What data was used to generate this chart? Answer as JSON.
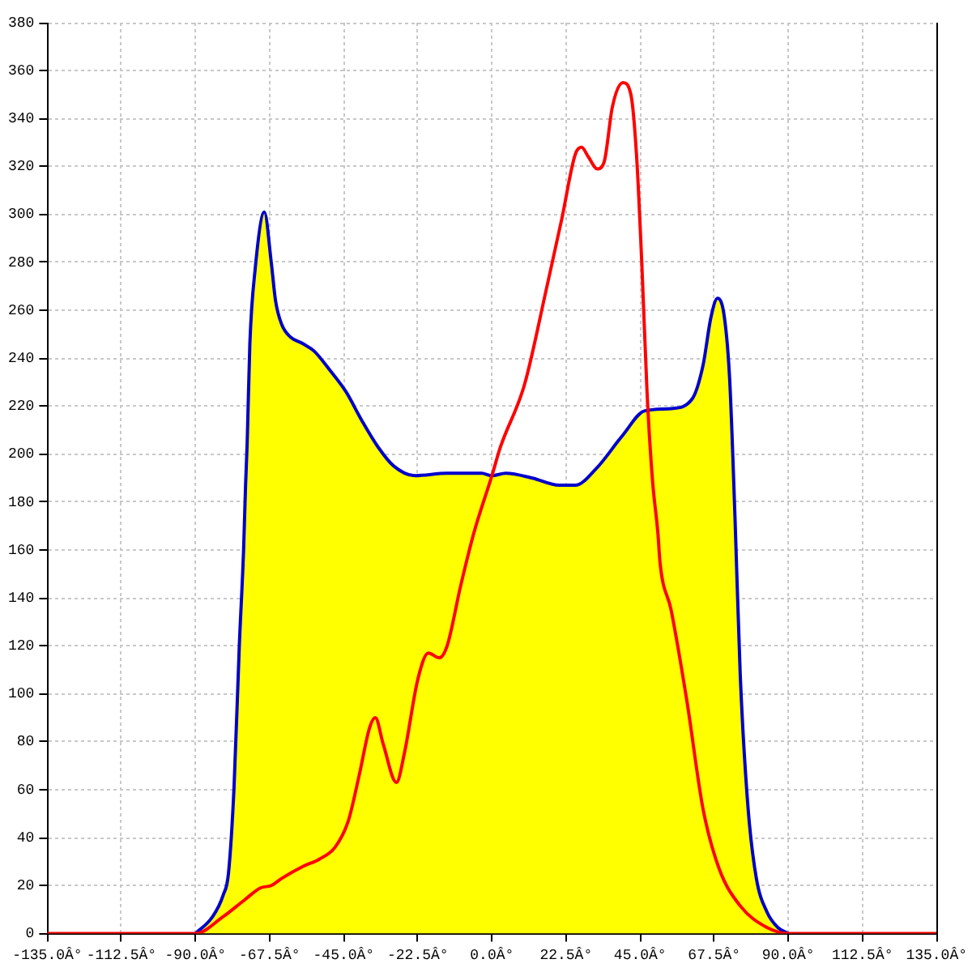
{
  "chart_data": {
    "type": "line",
    "xlim": [
      -135,
      135
    ],
    "xticks": [
      {
        "value": -135,
        "label": "-135.0Â°"
      },
      {
        "value": -112.5,
        "label": "-112.5Â°"
      },
      {
        "value": -90,
        "label": "-90.0Â°"
      },
      {
        "value": -67.5,
        "label": "-67.5Â°"
      },
      {
        "value": -45,
        "label": "-45.0Â°"
      },
      {
        "value": -22.5,
        "label": "-22.5Â°"
      },
      {
        "value": 0,
        "label": "0.0Â°"
      },
      {
        "value": 22.5,
        "label": "22.5Â°"
      },
      {
        "value": 45,
        "label": "45.0Â°"
      },
      {
        "value": 67.5,
        "label": "67.5Â°"
      },
      {
        "value": 90,
        "label": "90.0Â°"
      },
      {
        "value": 112.5,
        "label": "112.5Â°"
      },
      {
        "value": 135,
        "label": "135.0Â°"
      }
    ],
    "ylim": [
      0,
      380
    ],
    "yticks": [
      0,
      20,
      40,
      60,
      80,
      100,
      120,
      140,
      160,
      180,
      200,
      220,
      240,
      260,
      280,
      300,
      320,
      340,
      360,
      380
    ],
    "grid": true,
    "series": [
      {
        "type": "area",
        "color": "#ffff00",
        "x": [
          -135,
          -90,
          -84.8,
          -81.6,
          -80,
          -78.3,
          -76.7,
          -75.4,
          -74.8,
          -74.3,
          -73.5,
          -71.9,
          -69.1,
          -67,
          -65.7,
          -63.8,
          -61.3,
          -57.3,
          -54,
          -49.2,
          -44.3,
          -39.5,
          -34.6,
          -29.8,
          -23.3,
          -13.6,
          -3.1,
          0,
          4.2,
          12.3,
          20.4,
          25.3,
          31.7,
          39.8,
          46.3,
          54.4,
          60.8,
          64.1,
          66.5,
          68.5,
          70.6,
          72.2,
          73.8,
          75.4,
          77.8,
          80.3,
          83.5,
          86.8,
          90,
          135
        ],
        "values": [
          0,
          0,
          7,
          16,
          25,
          61,
          120,
          160,
          187,
          205,
          246,
          277,
          301,
          280,
          264,
          254,
          249,
          246,
          243,
          235,
          226,
          214,
          203,
          195,
          191,
          192,
          192,
          191,
          192,
          190,
          187,
          187,
          194,
          208,
          218,
          219,
          223,
          237,
          257,
          265,
          257,
          231,
          174,
          108,
          52,
          23,
          9,
          2.5,
          0,
          0
        ]
      },
      {
        "color": "#0000cc",
        "x": [
          -90,
          -84.8,
          -81.6,
          -80,
          -78.3,
          -76.7,
          -75.4,
          -74.8,
          -74.3,
          -73.5,
          -71.9,
          -69.1,
          -67,
          -65.7,
          -63.8,
          -61.3,
          -57.3,
          -54,
          -49.2,
          -44.3,
          -39.5,
          -34.6,
          -29.8,
          -23.3,
          -13.6,
          -3.1,
          0,
          4.2,
          12.3,
          20.4,
          25.3,
          31.7,
          39.8,
          46.3,
          54.4,
          60.8,
          64.1,
          66.5,
          68.5,
          70.6,
          72.2,
          73.8,
          75.4,
          77.8,
          80.3,
          83.5,
          86.8,
          90
        ],
        "values": [
          0,
          7,
          16,
          25,
          61,
          120,
          160,
          187,
          205,
          246,
          277,
          301,
          280,
          264,
          254,
          249,
          246,
          243,
          235,
          226,
          214,
          203,
          195,
          191,
          192,
          192,
          191,
          192,
          190,
          187,
          187,
          194,
          208,
          218,
          219,
          223,
          237,
          257,
          265,
          257,
          231,
          174,
          108,
          52,
          23,
          9,
          2.5,
          0
        ]
      },
      {
        "color": "#ff0000",
        "x": [
          -135,
          -90,
          -81.6,
          -75.1,
          -70.3,
          -67,
          -63.8,
          -57.3,
          -52.4,
          -47.6,
          -43.6,
          -40.3,
          -37.1,
          -35.4,
          -33,
          -29,
          -26.6,
          -22.5,
          -19.3,
          -16,
          -13.6,
          -9.5,
          -5.5,
          0,
          2.6,
          9.9,
          16.4,
          21.2,
          25.3,
          27.2,
          29.3,
          32,
          34.1,
          36.6,
          39.8,
          42.2,
          43.9,
          45.5,
          47.1,
          48.7,
          50.4,
          51.1,
          54.4,
          59.2,
          64.1,
          69,
          75.4,
          83.5,
          90,
          135
        ],
        "values": [
          0,
          0,
          7,
          14,
          19,
          20,
          23,
          28,
          31,
          36,
          47,
          66,
          86,
          90,
          79,
          63,
          75,
          106,
          117,
          115,
          120,
          145,
          167,
          191,
          203,
          229,
          268,
          298,
          325,
          328,
          324,
          319,
          322,
          345,
          355,
          350,
          325,
          280,
          226,
          190,
          167,
          154,
          135,
          97,
          52,
          27,
          11.5,
          2.5,
          0,
          0
        ]
      }
    ]
  }
}
